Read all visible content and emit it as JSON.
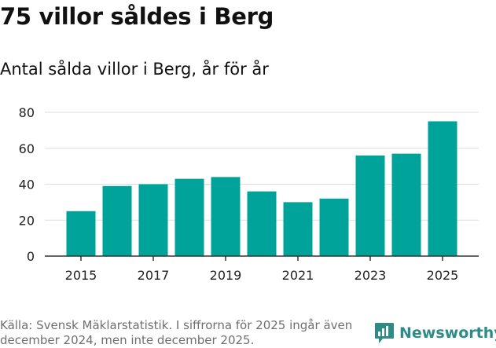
{
  "header": {
    "title": "75 villor såldes i Berg",
    "subtitle": "Antal sålda villor i Berg, år för år"
  },
  "chart_data": {
    "type": "bar",
    "title": "75 villor såldes i Berg",
    "subtitle": "Antal sålda villor i Berg, år för år",
    "xlabel": "",
    "ylabel": "",
    "categories": [
      "2015",
      "2016",
      "2017",
      "2018",
      "2019",
      "2020",
      "2021",
      "2022",
      "2023",
      "2024",
      "2025"
    ],
    "values": [
      25,
      39,
      40,
      43,
      44,
      36,
      30,
      32,
      56,
      57,
      75
    ],
    "x_tick_labels": [
      "2015",
      "2017",
      "2019",
      "2021",
      "2023",
      "2025"
    ],
    "y_ticks": [
      0,
      20,
      40,
      60,
      80
    ],
    "ylim": [
      0,
      80
    ],
    "grid": true,
    "bar_color": "#00a39a"
  },
  "footer": {
    "source": "Källa: Svensk Mäklarstatistik. I siffrorna för 2025 ingår även december 2024, men inte december 2025.",
    "brand": "Newsworthy",
    "brand_icon": "newsworthy-logo-icon",
    "brand_color": "#2e8b85"
  }
}
